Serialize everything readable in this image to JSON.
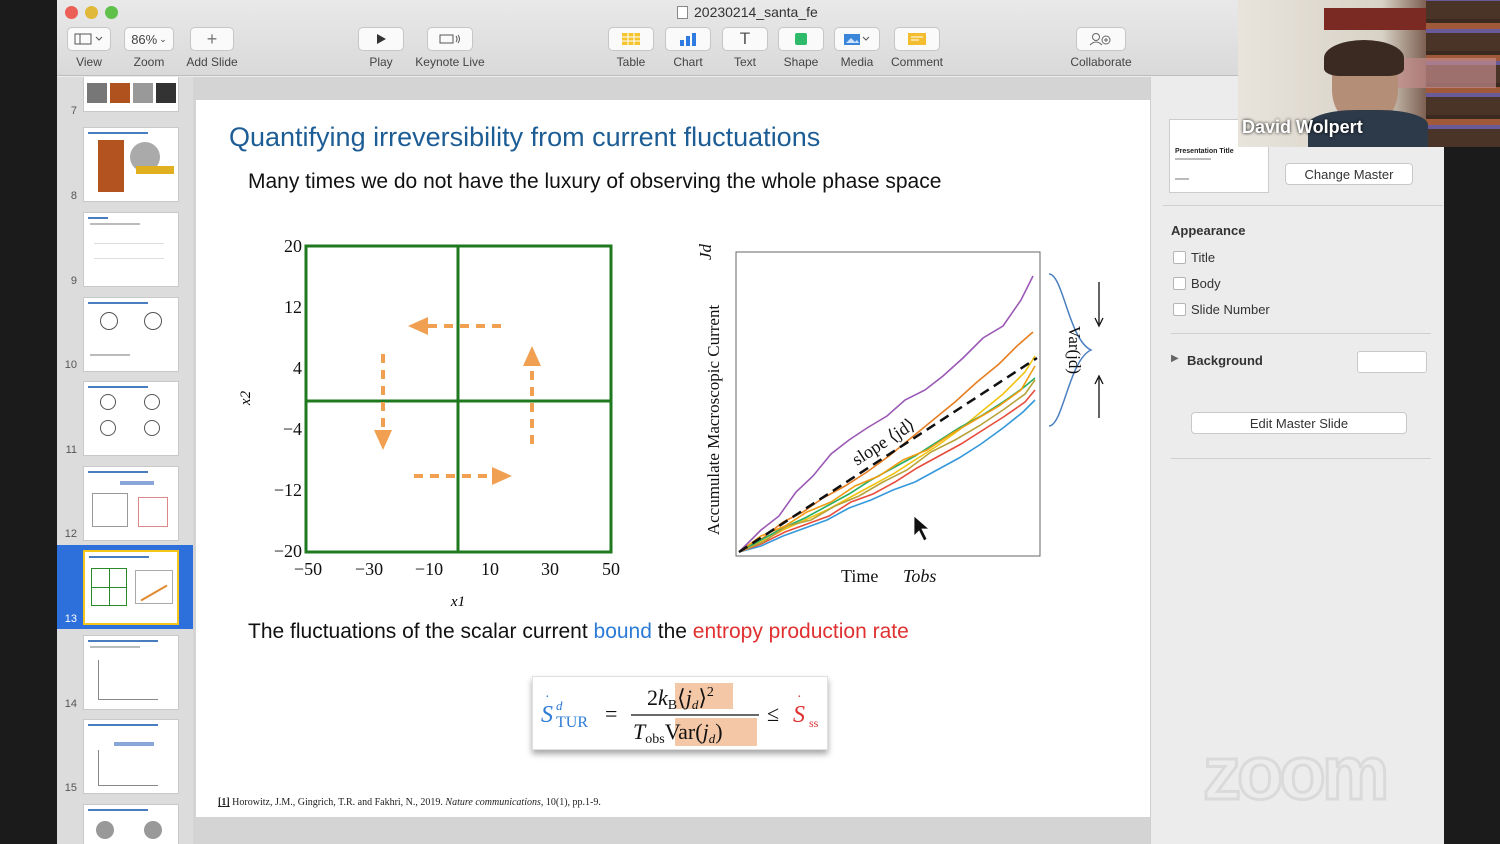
{
  "window": {
    "title": "20230214_santa_fe",
    "toolbar": {
      "view": "View",
      "zoom_value": "86%",
      "zoom": "Zoom",
      "add_slide": "Add Slide",
      "play": "Play",
      "keynote_live": "Keynote Live",
      "table": "Table",
      "chart": "Chart",
      "text": "Text",
      "shape": "Shape",
      "media": "Media",
      "comment": "Comment",
      "collaborate": "Collaborate"
    }
  },
  "navigator": {
    "slide_numbers": [
      "7",
      "8",
      "9",
      "10",
      "11",
      "12",
      "13",
      "14",
      "15"
    ],
    "selected": "13"
  },
  "slide": {
    "title": "Quantifying irreversibility from current fluctuations",
    "subtitle": "Many times we do not have the luxury of observing the whole phase space",
    "bottom": {
      "part1": "The fluctuations of the scalar current ",
      "bound": "bound",
      "part2": " the ",
      "entropy": "entropy production rate"
    },
    "citation": {
      "tag": "[1]",
      "authors": " Horowitz, J.M., Gingrich, T.R. and Fakhri, N., 2019. ",
      "journal": "Nature communications",
      "rest": ", 10(1), pp.1-9."
    },
    "left_plot": {
      "ylabel": "x2",
      "xlabel": "x1",
      "yticks": [
        "20",
        "12",
        "4",
        "−4",
        "−12",
        "−20"
      ],
      "xticks": [
        "−50",
        "−30",
        "−10",
        "10",
        "30",
        "50"
      ],
      "colors": {
        "grid": "#1f7a1f",
        "arrow": "#f0a050"
      }
    },
    "right_plot": {
      "ylabel": "Accumulate Macroscopic Current",
      "yvar": "Jd",
      "slope_label": "slope ⟨jd⟩",
      "var_label": "Var(jd)",
      "xlabel": "Time",
      "tobs": "Tobs"
    }
  },
  "inspector": {
    "change_master": "Change Master",
    "master_title": "Presentation Title",
    "appearance": "Appearance",
    "options": [
      "Title",
      "Body",
      "Slide Number"
    ],
    "background": "Background",
    "edit_master": "Edit Master Slide"
  },
  "video": {
    "participant": "David Wolpert"
  },
  "overlay": {
    "zoom_watermark": "zoom"
  }
}
